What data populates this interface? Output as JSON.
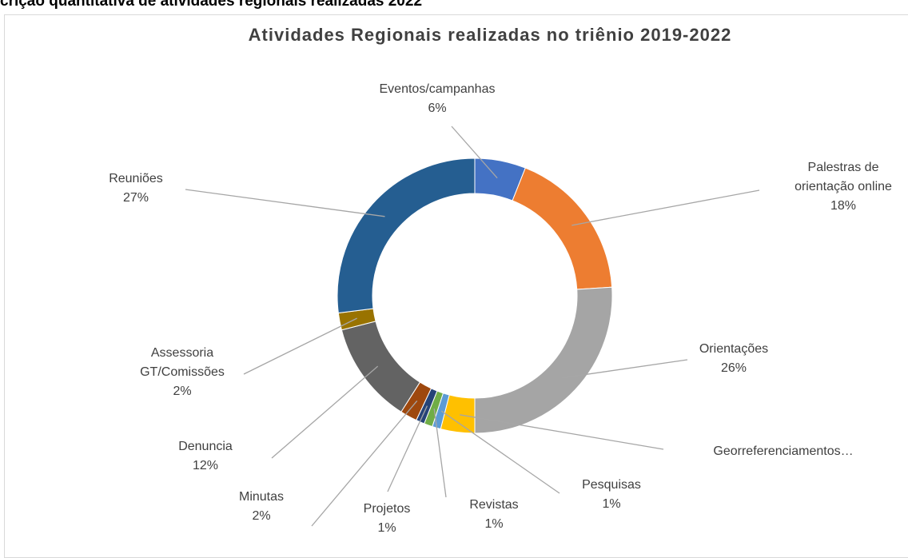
{
  "heading": "crição quantitativa de atividades regionais realizadas 2022",
  "chart_data": {
    "type": "pie",
    "donut": true,
    "title": "Atividades Regionais realizadas no triênio 2019-2022",
    "categories": [
      "Eventos/campanhas",
      "Palestras de orientação online",
      "Orientações",
      "Georreferenciamentos…",
      "Pesquisas",
      "Revistas",
      "Projetos",
      "Minutas",
      "Denuncia",
      "Assessoria GT/Comissões",
      "Reuniões"
    ],
    "values": [
      6,
      18,
      26,
      4,
      1,
      1,
      1,
      2,
      12,
      2,
      27
    ],
    "value_labels": [
      "6%",
      "18%",
      "26%",
      null,
      "1%",
      "1%",
      "1%",
      "2%",
      "12%",
      "2%",
      "27%"
    ],
    "colors": [
      "#4472c4",
      "#ed7d31",
      "#a5a5a5",
      "#ffc000",
      "#5b9bd5",
      "#70ad47",
      "#264478",
      "#9e480e",
      "#636363",
      "#997300",
      "#255e91"
    ]
  }
}
